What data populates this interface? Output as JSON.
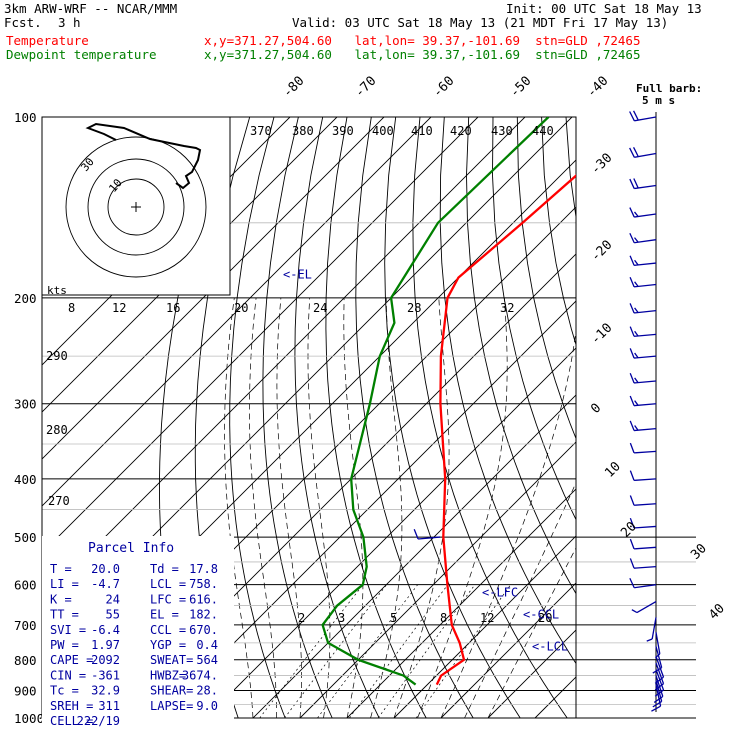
{
  "header": {
    "model": "3km ARW-WRF -- NCAR/MMM",
    "init": "Init: 00 UTC Sat 18 May 13",
    "fcst_label": "Fcst.",
    "fcst_value": "3 h",
    "valid": "Valid: 03 UTC Sat 18 May 13 (21 MDT Fri 17 May 13)",
    "series": [
      {
        "name": "Temperature",
        "location": "x,y=371.27,504.60   lat,lon= 39.37,-101.69  stn=GLD ,72465",
        "color": "#ff0000"
      },
      {
        "name": "Dewpoint temperature",
        "location": "x,y=371.27,504.60   lat,lon= 39.37,-101.69  stn=GLD ,72465",
        "color": "#008000"
      }
    ]
  },
  "chart_data": {
    "type": "line",
    "y_axis": "pressure (hPa), log scale",
    "ylim": [
      1000,
      100
    ],
    "pressure_labels": [
      "100",
      "200",
      "300",
      "400",
      "500",
      "600",
      "700",
      "800",
      "900",
      "1000"
    ],
    "isotherm_labels": [
      "-80",
      "-70",
      "-60",
      "-50",
      "-40",
      "-30",
      "-20",
      "-10",
      "0",
      "10",
      "20",
      "30",
      "40"
    ],
    "theta_labels": [
      "370",
      "380",
      "390",
      "400",
      "410",
      "420",
      "430",
      "440",
      "290",
      "280",
      "270"
    ],
    "mixing_ratio_labels": [
      "2",
      "3",
      "5",
      "8",
      "12",
      "20"
    ],
    "hodograph": {
      "speed_unit": "kts",
      "speed_labels": [
        "8",
        "12",
        "16",
        "20",
        "24",
        "28",
        "32"
      ],
      "ring_labels": [
        "30",
        "10"
      ]
    },
    "series": [
      {
        "name": "Temperature",
        "color": "#ff0000",
        "points": [
          [
            880,
            22
          ],
          [
            850,
            21
          ],
          [
            800,
            22.5
          ],
          [
            750,
            18
          ],
          [
            700,
            12.5
          ],
          [
            600,
            3
          ],
          [
            500,
            -8
          ],
          [
            400,
            -20
          ],
          [
            300,
            -37
          ],
          [
            250,
            -47
          ],
          [
            200,
            -58
          ],
          [
            185,
            -60
          ],
          [
            150,
            -58
          ],
          [
            100,
            -55
          ]
        ]
      },
      {
        "name": "Dewpoint temperature",
        "color": "#008000",
        "points": [
          [
            880,
            17.5
          ],
          [
            850,
            13
          ],
          [
            800,
            0
          ],
          [
            750,
            -10
          ],
          [
            700,
            -15
          ],
          [
            650,
            -16
          ],
          [
            600,
            -15
          ],
          [
            560,
            -18
          ],
          [
            500,
            -25
          ],
          [
            450,
            -33
          ],
          [
            400,
            -40
          ],
          [
            300,
            -52
          ],
          [
            250,
            -60
          ],
          [
            220,
            -64
          ],
          [
            200,
            -70
          ],
          [
            150,
            -76
          ],
          [
            100,
            -75
          ]
        ]
      }
    ],
    "annotations": [
      {
        "label": "<-EL",
        "pressure": 182
      },
      {
        "label": "<-LFC",
        "pressure": 616
      },
      {
        "label": "<-CCL",
        "pressure": 670
      },
      {
        "label": "<-LCL",
        "pressure": 758
      }
    ],
    "wind_barbs_label": "Full barb:",
    "wind_barbs_unit": "5 m s",
    "wind_barbs": [
      {
        "p": 100,
        "dir": 260,
        "spd": 18
      },
      {
        "p": 115,
        "dir": 260,
        "spd": 18
      },
      {
        "p": 130,
        "dir": 262,
        "spd": 18
      },
      {
        "p": 145,
        "dir": 262,
        "spd": 16
      },
      {
        "p": 160,
        "dir": 262,
        "spd": 16
      },
      {
        "p": 175,
        "dir": 264,
        "spd": 16
      },
      {
        "p": 190,
        "dir": 264,
        "spd": 16
      },
      {
        "p": 210,
        "dir": 264,
        "spd": 16
      },
      {
        "p": 230,
        "dir": 265,
        "spd": 15
      },
      {
        "p": 250,
        "dir": 265,
        "spd": 15
      },
      {
        "p": 275,
        "dir": 265,
        "spd": 14
      },
      {
        "p": 300,
        "dir": 265,
        "spd": 14
      },
      {
        "p": 330,
        "dir": 265,
        "spd": 13
      },
      {
        "p": 360,
        "dir": 266,
        "spd": 12
      },
      {
        "p": 400,
        "dir": 266,
        "spd": 12
      },
      {
        "p": 440,
        "dir": 266,
        "spd": 11
      },
      {
        "p": 480,
        "dir": 266,
        "spd": 10
      },
      {
        "p": 520,
        "dir": 266,
        "spd": 10
      },
      {
        "p": 560,
        "dir": 266,
        "spd": 10
      },
      {
        "p": 600,
        "dir": 262,
        "spd": 8
      },
      {
        "p": 640,
        "dir": 240,
        "spd": 5
      },
      {
        "p": 680,
        "dir": 190,
        "spd": 5
      },
      {
        "p": 720,
        "dir": 170,
        "spd": 7
      },
      {
        "p": 760,
        "dir": 165,
        "spd": 8
      },
      {
        "p": 790,
        "dir": 160,
        "spd": 9
      },
      {
        "p": 810,
        "dir": 160,
        "spd": 10
      },
      {
        "p": 830,
        "dir": 160,
        "spd": 11
      },
      {
        "p": 850,
        "dir": 162,
        "spd": 11
      },
      {
        "p": 865,
        "dir": 165,
        "spd": 12
      },
      {
        "p": 880,
        "dir": 168,
        "spd": 12
      }
    ],
    "dry_barbs": [
      {
        "p": 500,
        "dir": 265,
        "spd": 10
      }
    ]
  },
  "parcel_info": {
    "title": "Parcel Info",
    "rows": [
      [
        "T  =",
        "20.0",
        "Td =",
        "17.8"
      ],
      [
        "LI =",
        "-4.7",
        "LCL =",
        "758."
      ],
      [
        "K  =",
        "24",
        "LFC =",
        "616."
      ],
      [
        "TT =",
        "55",
        "EL  =",
        "182."
      ],
      [
        "SVI =",
        "-6.4",
        "CCL =",
        "670."
      ],
      [
        "PW =",
        "1.97",
        "YGP =",
        "0.4"
      ],
      [
        "CAPE =",
        "2092",
        "SWEAT=",
        "564"
      ],
      [
        "CIN =",
        "-361",
        "HWBZ=",
        "3674."
      ],
      [
        "Tc =",
        "32.9",
        "SHEAR=",
        "28."
      ],
      [
        "SREH =",
        "311",
        "LAPSE=",
        "9.0"
      ],
      [
        "CELL =",
        "222/19",
        "",
        ""
      ]
    ]
  }
}
